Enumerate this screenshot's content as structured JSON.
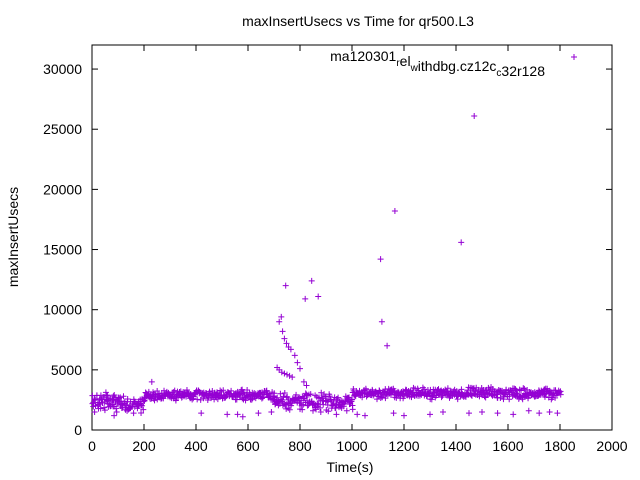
{
  "chart_data": {
    "type": "scatter",
    "title": "maxInsertUsecs vs Time for qr500.L3",
    "xlabel": "Time(s)",
    "ylabel": "maxInsertUsecs",
    "xlim": [
      0,
      2000
    ],
    "ylim": [
      0,
      32000
    ],
    "xticks": [
      "0",
      "200",
      "400",
      "600",
      "800",
      "1000",
      "1200",
      "1400",
      "1600",
      "1800",
      "2000"
    ],
    "yticks": [
      "0",
      "5000",
      "10000",
      "15000",
      "20000",
      "25000",
      "30000"
    ],
    "grid": false,
    "legend_position": "top-right",
    "marker": "+",
    "series": [
      {
        "name": "ma120301",
        "name_parts": [
          {
            "text": "ma120301",
            "sub": false
          },
          {
            "text": "r",
            "sub": true
          },
          {
            "text": "el",
            "sub": false
          },
          {
            "text": "w",
            "sub": true
          },
          {
            "text": "ithdbg.cz12c",
            "sub": false
          },
          {
            "text": "c",
            "sub": true
          },
          {
            "text": "32r128",
            "sub": false
          }
        ],
        "color": "#9400d3",
        "baseline_band": {
          "segments": [
            {
              "x": [
                0,
                80
              ],
              "y": [
                1500,
                3200
              ]
            },
            {
              "x": [
                80,
                200
              ],
              "y": [
                1300,
                3000
              ]
            },
            {
              "x": [
                200,
                700
              ],
              "y": [
                2400,
                3400
              ]
            },
            {
              "x": [
                700,
                1000
              ],
              "y": [
                1500,
                3200
              ]
            },
            {
              "x": [
                1000,
                1800
              ],
              "y": [
                2500,
                3600
              ]
            }
          ]
        },
        "outliers": [
          [
            10,
            1500
          ],
          [
            30,
            2600
          ],
          [
            60,
            2900
          ],
          [
            85,
            1200
          ],
          [
            95,
            1500
          ],
          [
            110,
            2000
          ],
          [
            140,
            1700
          ],
          [
            160,
            1400
          ],
          [
            230,
            4000
          ],
          [
            420,
            1400
          ],
          [
            520,
            1300
          ],
          [
            560,
            1300
          ],
          [
            580,
            1100
          ],
          [
            640,
            1400
          ],
          [
            690,
            1500
          ],
          [
            712,
            5200
          ],
          [
            720,
            5000
          ],
          [
            730,
            4800
          ],
          [
            740,
            4700
          ],
          [
            750,
            4600
          ],
          [
            760,
            4500
          ],
          [
            770,
            4400
          ],
          [
            720,
            9000
          ],
          [
            728,
            9400
          ],
          [
            733,
            8200
          ],
          [
            740,
            7600
          ],
          [
            748,
            7200
          ],
          [
            756,
            6900
          ],
          [
            765,
            6700
          ],
          [
            745,
            12000
          ],
          [
            780,
            6200
          ],
          [
            790,
            5600
          ],
          [
            800,
            5100
          ],
          [
            815,
            4000
          ],
          [
            825,
            3700
          ],
          [
            820,
            10900
          ],
          [
            845,
            12400
          ],
          [
            870,
            11100
          ],
          [
            850,
            1600
          ],
          [
            880,
            1500
          ],
          [
            940,
            1300
          ],
          [
            980,
            1600
          ],
          [
            1020,
            1300
          ],
          [
            1050,
            1200
          ],
          [
            1110,
            14200
          ],
          [
            1115,
            9000
          ],
          [
            1135,
            7000
          ],
          [
            1165,
            18200
          ],
          [
            1420,
            15600
          ],
          [
            1470,
            26100
          ],
          [
            1160,
            1400
          ],
          [
            1200,
            1200
          ],
          [
            1300,
            1300
          ],
          [
            1350,
            1500
          ],
          [
            1450,
            1400
          ],
          [
            1500,
            1500
          ],
          [
            1560,
            1400
          ],
          [
            1620,
            1300
          ],
          [
            1680,
            1600
          ],
          [
            1720,
            1400
          ],
          [
            1760,
            1500
          ],
          [
            1790,
            1400
          ]
        ]
      }
    ]
  }
}
